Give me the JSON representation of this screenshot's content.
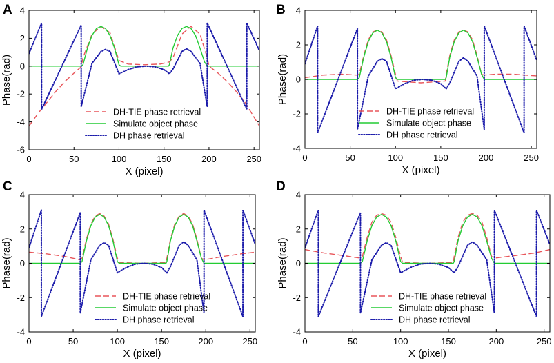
{
  "chart_data": [
    {
      "type": "line",
      "panel_label": "A",
      "xlabel": "X (pixel)",
      "ylabel": "Phase(rad)",
      "xlim": [
        0,
        256
      ],
      "ylim": [
        -6,
        4
      ],
      "xticks": [
        "0",
        "50",
        "100",
        "150",
        "200",
        "250"
      ],
      "yticks": [
        "-6",
        "-4",
        "-2",
        "0",
        "2",
        "4"
      ],
      "series": [
        {
          "name": "DH-TIE phase retrieval",
          "style": "dashed",
          "color": "#e8555a",
          "x": [
            0,
            10,
            20,
            30,
            40,
            50,
            58,
            60,
            70,
            80,
            90,
            100,
            110,
            128,
            146,
            156,
            160,
            170,
            180,
            190,
            198,
            200,
            210,
            220,
            230,
            240,
            256
          ],
          "y": [
            -4.3,
            -3.4,
            -2.6,
            -1.8,
            -1.1,
            -0.5,
            -0.05,
            0.6,
            2.3,
            2.85,
            2.4,
            0.4,
            0.15,
            0.1,
            0.15,
            0.3,
            0.6,
            2.3,
            2.85,
            2.3,
            0.6,
            0.0,
            -0.5,
            -1.1,
            -1.8,
            -2.6,
            -4.3
          ]
        },
        {
          "name": "Simulate object phase",
          "style": "solid",
          "color": "#22cc33",
          "x": [
            0,
            58,
            60,
            65,
            70,
            75,
            80,
            85,
            90,
            95,
            100,
            102,
            155,
            156,
            160,
            165,
            170,
            175,
            180,
            185,
            190,
            195,
            198,
            256
          ],
          "y": [
            0,
            0,
            0.1,
            1.3,
            2.2,
            2.7,
            2.85,
            2.7,
            2.2,
            1.3,
            0.1,
            0,
            0,
            0.1,
            1.3,
            2.2,
            2.7,
            2.85,
            2.7,
            2.2,
            1.3,
            0.3,
            0,
            0
          ]
        },
        {
          "name": "DH phase retrieval",
          "style": "dotted",
          "color": "#1a1aaa",
          "x": [
            0,
            14,
            14.01,
            58,
            58.01,
            70,
            80,
            85,
            90,
            100,
            110,
            120,
            130,
            140,
            150,
            156,
            160,
            170,
            175,
            180,
            190,
            198,
            198.01,
            242,
            242.01,
            256
          ],
          "y": [
            0.9,
            3.1,
            -3.1,
            2.95,
            -2.9,
            0.2,
            1.05,
            1.2,
            1.05,
            -0.55,
            -0.25,
            -0.05,
            0.0,
            -0.05,
            -0.25,
            -0.55,
            -0.2,
            1.05,
            1.25,
            1.05,
            0.2,
            -2.9,
            3.1,
            -3.1,
            3.1,
            1.1
          ]
        }
      ],
      "legend": {
        "position": "bottom-center",
        "entries": [
          "DH-TIE phase retrieval",
          "Simulate object phase",
          "DH phase retrieval"
        ]
      }
    },
    {
      "type": "line",
      "panel_label": "B",
      "xlabel": "X (pixel)",
      "ylabel": "Phase(rad)",
      "xlim": [
        0,
        256
      ],
      "ylim": [
        -4,
        4
      ],
      "xticks": [
        "0",
        "50",
        "100",
        "150",
        "200",
        "250"
      ],
      "yticks": [
        "-4",
        "-2",
        "0",
        "2",
        "4"
      ],
      "series": [
        {
          "name": "DH-TIE phase retrieval",
          "style": "dashed",
          "color": "#e8555a",
          "x": [
            0,
            20,
            40,
            58,
            60,
            65,
            70,
            75,
            80,
            85,
            90,
            95,
            100,
            102,
            128,
            155,
            156,
            160,
            165,
            170,
            175,
            180,
            185,
            190,
            195,
            198,
            210,
            230,
            256
          ],
          "y": [
            0.1,
            0.25,
            0.3,
            0.25,
            0.3,
            1.4,
            2.3,
            2.75,
            2.85,
            2.75,
            2.3,
            1.4,
            0.3,
            -0.1,
            -0.2,
            -0.1,
            0.3,
            1.4,
            2.3,
            2.75,
            2.85,
            2.75,
            2.3,
            1.4,
            0.3,
            0.25,
            0.3,
            0.3,
            0.2
          ]
        },
        {
          "name": "Simulate object phase",
          "style": "solid",
          "color": "#22cc33",
          "x": [
            0,
            58,
            60,
            65,
            70,
            75,
            80,
            85,
            90,
            95,
            100,
            102,
            155,
            156,
            160,
            165,
            170,
            175,
            180,
            185,
            190,
            195,
            198,
            256
          ],
          "y": [
            0,
            0,
            0.1,
            1.3,
            2.2,
            2.7,
            2.85,
            2.7,
            2.2,
            1.3,
            0.1,
            0,
            0,
            0.1,
            1.3,
            2.2,
            2.7,
            2.85,
            2.7,
            2.2,
            1.3,
            0.3,
            0,
            0
          ]
        },
        {
          "name": "DH phase retrieval",
          "style": "dotted",
          "color": "#1a1aaa",
          "x": [
            0,
            14,
            14.01,
            58,
            58.01,
            70,
            80,
            85,
            90,
            100,
            110,
            120,
            130,
            140,
            150,
            156,
            160,
            170,
            175,
            180,
            190,
            198,
            198.01,
            242,
            242.01,
            256
          ],
          "y": [
            0.9,
            3.1,
            -3.1,
            2.95,
            -2.9,
            0.2,
            1.05,
            1.2,
            1.05,
            -0.55,
            -0.25,
            -0.05,
            0.0,
            -0.05,
            -0.25,
            -0.55,
            -0.2,
            1.05,
            1.25,
            1.05,
            0.2,
            -2.9,
            3.1,
            -3.1,
            3.1,
            1.1
          ]
        }
      ],
      "legend": {
        "position": "bottom-center",
        "entries": [
          "DH-TIE phase retrieval",
          "Simulate object phase",
          "DH phase retrieval"
        ]
      }
    },
    {
      "type": "line",
      "panel_label": "C",
      "xlabel": "X (pixel)",
      "ylabel": "Phase(rad)",
      "xlim": [
        0,
        256
      ],
      "ylim": [
        -4,
        4
      ],
      "xticks": [
        "0",
        "50",
        "100",
        "150",
        "200",
        "250"
      ],
      "yticks": [
        "-4",
        "-2",
        "0",
        "2",
        "4"
      ],
      "series": [
        {
          "name": "DH-TIE phase retrieval",
          "style": "dashed",
          "color": "#e8555a",
          "x": [
            0,
            20,
            40,
            58,
            60,
            65,
            70,
            75,
            80,
            85,
            90,
            95,
            100,
            102,
            128,
            155,
            156,
            160,
            165,
            170,
            175,
            180,
            185,
            190,
            195,
            198,
            220,
            240,
            256
          ],
          "y": [
            0.65,
            0.55,
            0.4,
            0.2,
            0.3,
            1.4,
            2.3,
            2.75,
            2.9,
            2.75,
            2.3,
            1.4,
            0.3,
            0.05,
            0.0,
            0.05,
            0.3,
            1.4,
            2.3,
            2.75,
            2.9,
            2.75,
            2.3,
            1.4,
            0.3,
            0.2,
            0.4,
            0.55,
            0.65
          ]
        },
        {
          "name": "Simulate object phase",
          "style": "solid",
          "color": "#22cc33",
          "x": [
            0,
            58,
            60,
            65,
            70,
            75,
            80,
            85,
            90,
            95,
            100,
            102,
            155,
            156,
            160,
            165,
            170,
            175,
            180,
            185,
            190,
            195,
            198,
            256
          ],
          "y": [
            0,
            0,
            0.1,
            1.3,
            2.2,
            2.7,
            2.85,
            2.7,
            2.2,
            1.3,
            0.1,
            0,
            0,
            0.1,
            1.3,
            2.2,
            2.7,
            2.85,
            2.7,
            2.2,
            1.3,
            0.3,
            0,
            0
          ]
        },
        {
          "name": "DH phase retrieval",
          "style": "dotted",
          "color": "#1a1aaa",
          "x": [
            0,
            14,
            14.01,
            58,
            58.01,
            70,
            80,
            85,
            90,
            100,
            110,
            120,
            130,
            140,
            150,
            156,
            160,
            170,
            175,
            180,
            190,
            198,
            198.01,
            242,
            242.01,
            256
          ],
          "y": [
            0.9,
            3.1,
            -3.1,
            2.95,
            -2.9,
            0.2,
            1.05,
            1.2,
            1.05,
            -0.55,
            -0.25,
            -0.05,
            0.0,
            -0.05,
            -0.25,
            -0.55,
            -0.2,
            1.05,
            1.25,
            1.05,
            0.2,
            -2.9,
            3.1,
            -3.1,
            3.1,
            1.1
          ]
        }
      ],
      "legend": {
        "position": "bottom-center",
        "entries": [
          "DH-TIE phase retrieval",
          "Simulate object phase",
          "DH phase retrieval"
        ]
      }
    },
    {
      "type": "line",
      "panel_label": "D",
      "xlabel": "X (pixel)",
      "ylabel": "Phase(rad)",
      "xlim": [
        0,
        256
      ],
      "ylim": [
        -4,
        4
      ],
      "xticks": [
        "0",
        "50",
        "100",
        "150",
        "200",
        "250"
      ],
      "yticks": [
        "-4",
        "-2",
        "0",
        "2",
        "4"
      ],
      "series": [
        {
          "name": "DH-TIE phase retrieval",
          "style": "dashed",
          "color": "#e8555a",
          "x": [
            0,
            20,
            40,
            58,
            60,
            65,
            70,
            75,
            80,
            85,
            90,
            95,
            100,
            102,
            128,
            155,
            156,
            160,
            165,
            170,
            175,
            180,
            185,
            190,
            195,
            198,
            220,
            240,
            256
          ],
          "y": [
            0.8,
            0.6,
            0.45,
            0.3,
            0.4,
            1.5,
            2.4,
            2.8,
            2.9,
            2.8,
            2.4,
            1.5,
            0.4,
            0.05,
            0.0,
            0.05,
            0.4,
            1.5,
            2.4,
            2.8,
            2.9,
            2.8,
            2.4,
            1.5,
            0.4,
            0.3,
            0.45,
            0.6,
            0.8
          ]
        },
        {
          "name": "Simulate object phase",
          "style": "solid",
          "color": "#22cc33",
          "x": [
            0,
            58,
            60,
            65,
            70,
            75,
            80,
            85,
            90,
            95,
            100,
            102,
            155,
            156,
            160,
            165,
            170,
            175,
            180,
            185,
            190,
            195,
            198,
            256
          ],
          "y": [
            0,
            0,
            0.1,
            1.3,
            2.2,
            2.7,
            2.85,
            2.7,
            2.2,
            1.3,
            0.1,
            0,
            0,
            0.1,
            1.3,
            2.2,
            2.7,
            2.85,
            2.7,
            2.2,
            1.3,
            0.3,
            0,
            0
          ]
        },
        {
          "name": "DH phase retrieval",
          "style": "dotted",
          "color": "#1a1aaa",
          "x": [
            0,
            14,
            14.01,
            58,
            58.01,
            70,
            80,
            85,
            90,
            100,
            110,
            120,
            130,
            140,
            150,
            156,
            160,
            170,
            175,
            180,
            190,
            198,
            198.01,
            242,
            242.01,
            256
          ],
          "y": [
            0.9,
            3.1,
            -3.1,
            2.95,
            -2.9,
            0.2,
            1.05,
            1.2,
            1.05,
            -0.55,
            -0.25,
            -0.05,
            0.0,
            -0.05,
            -0.25,
            -0.55,
            -0.2,
            1.05,
            1.25,
            1.05,
            0.2,
            -2.9,
            3.1,
            -3.1,
            3.1,
            1.1
          ]
        }
      ],
      "legend": {
        "position": "bottom-center",
        "entries": [
          "DH-TIE phase retrieval",
          "Simulate object phase",
          "DH phase retrieval"
        ]
      }
    }
  ]
}
